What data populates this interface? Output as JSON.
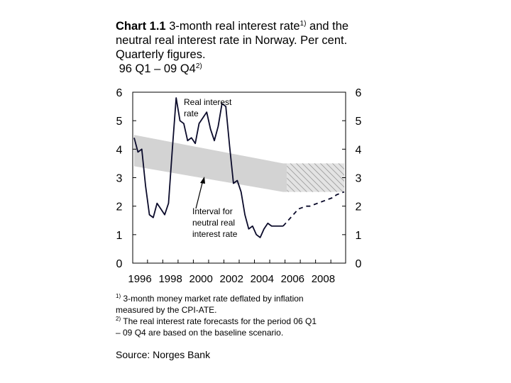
{
  "title": {
    "prefix": "Chart 1.1",
    "line1_rest": " 3-month real interest rate",
    "line1_sup": "1)",
    "line1_end": " and the",
    "line2": "neutral real interest rate in Norway. Per cent.",
    "line3": "Quarterly figures.",
    "line4": " 96 Q1 – 09 Q4",
    "line4_sup": "2)"
  },
  "annotations": {
    "real_rate_line1": "Real interest",
    "real_rate_line2": "rate",
    "interval_line1": "Interval for",
    "interval_line2": "neutral real",
    "interval_line3": "interest rate"
  },
  "footnotes": {
    "fn1_mark": "1)",
    "fn1_line1": " 3-month money market rate deflated by inflation",
    "fn1_line2": "measured by the CPI-ATE.",
    "fn2_mark": "2)",
    "fn2_line1": " The real interest rate forecasts for the period 06 Q1",
    "fn2_line2": "– 09 Q4 are based on the baseline scenario."
  },
  "source": "Source: Norges Bank",
  "chart_data": {
    "type": "line",
    "ylim": [
      0,
      6
    ],
    "y_ticks": [
      "0",
      "1",
      "2",
      "3",
      "4",
      "5",
      "6"
    ],
    "x_tick_labels": [
      "1996",
      "1998",
      "2000",
      "2002",
      "2004",
      "2006",
      "2008"
    ],
    "x_start_quarter": "96 Q1",
    "series": [
      {
        "style": "solid",
        "x": [
          "1996 Q1",
          "1996 Q2",
          "1996 Q3",
          "1996 Q4",
          "1997 Q1",
          "1997 Q2",
          "1997 Q3",
          "1997 Q4",
          "1998 Q1",
          "1998 Q2",
          "1998 Q3",
          "1998 Q4",
          "1999 Q1",
          "1999 Q2",
          "1999 Q3",
          "1999 Q4",
          "2000 Q1",
          "2000 Q2",
          "2000 Q3",
          "2000 Q4",
          "2001 Q1",
          "2001 Q2",
          "2001 Q3",
          "2001 Q4",
          "2002 Q1",
          "2002 Q2",
          "2002 Q3",
          "2002 Q4",
          "2003 Q1",
          "2003 Q2",
          "2003 Q3",
          "2003 Q4",
          "2004 Q1",
          "2004 Q2",
          "2004 Q3",
          "2004 Q4",
          "2005 Q1",
          "2005 Q2",
          "2005 Q3",
          "2005 Q4"
        ],
        "values": [
          4.4,
          3.9,
          4.0,
          2.7,
          1.7,
          1.6,
          2.1,
          1.9,
          1.7,
          2.1,
          4.0,
          5.8,
          5.0,
          4.9,
          4.3,
          4.4,
          4.2,
          4.9,
          5.1,
          5.3,
          4.7,
          4.3,
          4.8,
          5.6,
          5.5,
          4.1,
          2.8,
          2.9,
          2.5,
          1.7,
          1.2,
          1.3,
          1.0,
          0.9,
          1.2,
          1.4,
          1.3,
          1.3,
          1.3,
          1.3
        ]
      },
      {
        "style": "dashed",
        "x": [
          "2005 Q4",
          "2006 Q1",
          "2006 Q2",
          "2006 Q3",
          "2006 Q4",
          "2007 Q1",
          "2007 Q2",
          "2007 Q3",
          "2007 Q4",
          "2008 Q1",
          "2008 Q2",
          "2008 Q3",
          "2008 Q4",
          "2009 Q1",
          "2009 Q2",
          "2009 Q3",
          "2009 Q4"
        ],
        "values": [
          1.3,
          1.45,
          1.6,
          1.75,
          1.9,
          1.95,
          2.0,
          2.0,
          2.05,
          2.1,
          2.15,
          2.2,
          2.25,
          2.3,
          2.4,
          2.45,
          2.5
        ]
      }
    ],
    "neutral_interval": {
      "x": [
        "1996 Q1",
        "2005 Q4",
        "2009 Q4"
      ],
      "upper": [
        4.5,
        3.5,
        3.5
      ],
      "lower": [
        3.4,
        2.5,
        2.5
      ],
      "hatched_from": "2006 Q1",
      "color": "#d3d3d3"
    },
    "grid": false,
    "line_color": "#0a0a2a"
  }
}
